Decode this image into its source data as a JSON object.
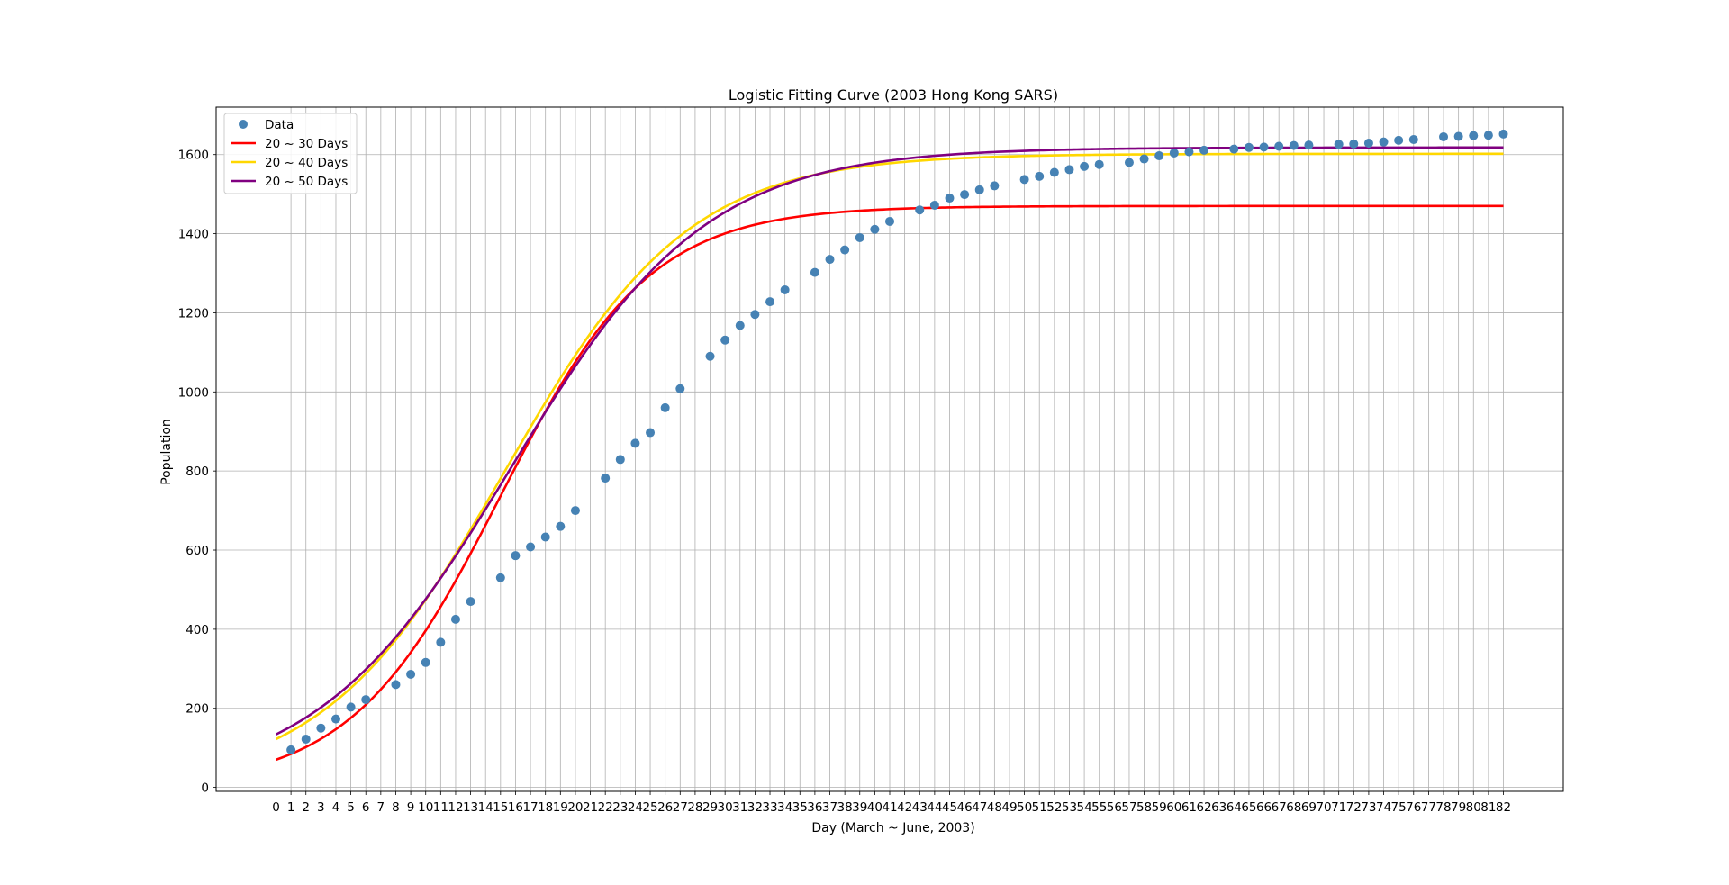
{
  "chart_data": {
    "type": "scatter",
    "title": "Logistic Fitting Curve (2003 Hong Kong SARS)",
    "xlabel": "Day (March ~ June, 2003)",
    "ylabel": "Population",
    "xlim": [
      -4,
      86
    ],
    "ylim": [
      -10,
      1720
    ],
    "x_ticks": [
      0,
      1,
      2,
      3,
      4,
      5,
      6,
      7,
      8,
      9,
      10,
      11,
      12,
      13,
      14,
      15,
      16,
      17,
      18,
      19,
      20,
      21,
      22,
      23,
      24,
      25,
      26,
      27,
      28,
      29,
      30,
      31,
      32,
      33,
      34,
      35,
      36,
      37,
      38,
      39,
      40,
      41,
      42,
      43,
      44,
      45,
      46,
      47,
      48,
      49,
      50,
      51,
      52,
      53,
      54,
      55,
      56,
      57,
      58,
      59,
      60,
      61,
      62,
      63,
      64,
      65,
      66,
      67,
      68,
      69,
      70,
      71,
      72,
      73,
      74,
      75,
      76,
      77,
      78,
      79,
      80,
      81,
      82
    ],
    "y_ticks": [
      0,
      200,
      400,
      600,
      800,
      1000,
      1200,
      1400,
      1600
    ],
    "grid": true,
    "legend_position": "top-left",
    "scatter_series": {
      "name": "Data",
      "color": "#4682b4",
      "x": [
        1,
        2,
        3,
        4,
        5,
        6,
        8,
        9,
        10,
        11,
        12,
        13,
        15,
        16,
        17,
        18,
        19,
        20,
        22,
        23,
        24,
        25,
        26,
        27,
        29,
        30,
        31,
        32,
        33,
        34,
        36,
        37,
        38,
        39,
        40,
        41,
        43,
        44,
        45,
        46,
        47,
        48,
        50,
        51,
        52,
        53,
        54,
        55,
        57,
        58,
        59,
        60,
        61,
        62,
        64,
        65,
        66,
        67,
        68,
        69,
        71,
        72,
        73,
        74,
        75,
        76,
        78,
        79,
        80,
        81,
        82
      ],
      "y": [
        95,
        122,
        150,
        173,
        203,
        222,
        260,
        286,
        316,
        367,
        425,
        470,
        530,
        586,
        608,
        633,
        660,
        700,
        782,
        829,
        870,
        897,
        960,
        1008,
        1090,
        1131,
        1168,
        1196,
        1228,
        1258,
        1302,
        1335,
        1359,
        1390,
        1411,
        1431,
        1460,
        1472,
        1490,
        1499,
        1511,
        1521,
        1537,
        1545,
        1555,
        1562,
        1570,
        1575,
        1580,
        1589,
        1597,
        1604,
        1607,
        1611,
        1614,
        1618,
        1619,
        1621,
        1623,
        1624,
        1626,
        1627,
        1629,
        1632,
        1636,
        1638,
        1645,
        1646,
        1648,
        1649,
        1652
      ]
    },
    "line_series": [
      {
        "name": "20 ~ 30 Days",
        "color": "#ff0000",
        "K": 1470,
        "P0": 70,
        "r": 0.2
      },
      {
        "name": "20 ~ 40 Days",
        "color": "#ffd700",
        "K": 1602,
        "P0": 122,
        "r": 0.163
      },
      {
        "name": "20 ~ 50 Days",
        "color": "#800080",
        "K": 1618,
        "P0": 134,
        "r": 0.153
      }
    ],
    "line_range": [
      0,
      82
    ]
  }
}
